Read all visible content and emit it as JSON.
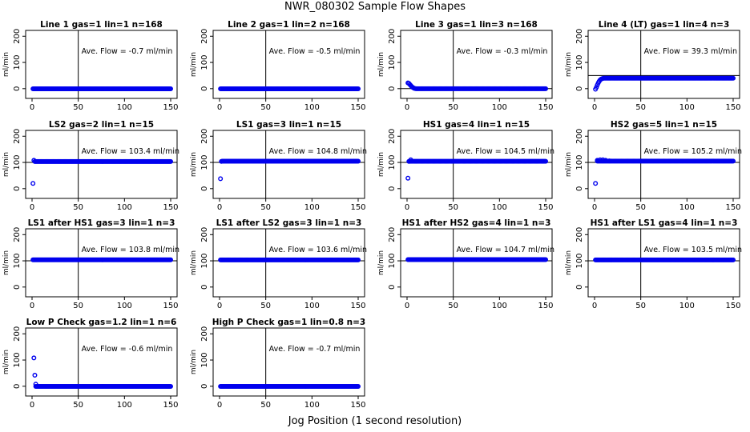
{
  "figure": {
    "title": "NWR_080302  Sample Flow Shapes",
    "xlabel": "Jog Position (1 second resolution)",
    "point_color": "#0000ee"
  },
  "chart_data": [
    {
      "type": "scatter",
      "title": "Line 1 gas=1 lin=1 n=168",
      "ylabel": "ml/min",
      "xlim": [
        0,
        150
      ],
      "ylim": [
        -25,
        210
      ],
      "xticks": [
        0,
        50,
        100,
        150
      ],
      "yticks": [
        0,
        100,
        200
      ],
      "vline": 50,
      "hlines": [],
      "annotation": "Ave. Flow =  -0.7  ml/min",
      "segments": [
        {
          "from": 1,
          "to": 150,
          "y": -0.7
        }
      ],
      "points": []
    },
    {
      "type": "scatter",
      "title": "Line 2 gas=1 lin=2 n=168",
      "ylabel": "ml/min",
      "xlim": [
        0,
        150
      ],
      "ylim": [
        -25,
        210
      ],
      "xticks": [
        0,
        50,
        100,
        150
      ],
      "yticks": [
        0,
        100,
        200
      ],
      "vline": 50,
      "hlines": [],
      "annotation": "Ave. Flow =  -0.5  ml/min",
      "segments": [
        {
          "from": 1,
          "to": 150,
          "y": -0.5
        }
      ],
      "points": []
    },
    {
      "type": "scatter",
      "title": "Line 3 gas=1 lin=3 n=168",
      "ylabel": "ml/min",
      "xlim": [
        0,
        150
      ],
      "ylim": [
        -25,
        210
      ],
      "xticks": [
        0,
        50,
        100,
        150
      ],
      "yticks": [
        0,
        100,
        200
      ],
      "vline": 50,
      "hlines": [
        0
      ],
      "annotation": "Ave. Flow =  -0.3  ml/min",
      "segments": [
        {
          "from": 10,
          "to": 150,
          "y": -0.3
        }
      ],
      "points": [
        [
          1,
          22
        ],
        [
          2,
          20
        ],
        [
          3,
          16
        ],
        [
          4,
          12
        ],
        [
          5,
          8
        ],
        [
          6,
          5
        ],
        [
          7,
          3
        ],
        [
          8,
          1
        ],
        [
          9,
          0
        ]
      ]
    },
    {
      "type": "scatter",
      "title": "Line 4 (LT) gas=1 lin=4 n=3",
      "ylabel": "ml/min",
      "xlim": [
        0,
        150
      ],
      "ylim": [
        -25,
        210
      ],
      "xticks": [
        0,
        50,
        100,
        150
      ],
      "yticks": [
        0,
        100,
        200
      ],
      "vline": 50,
      "hlines": [
        50
      ],
      "annotation": "Ave. Flow =  39.3  ml/min",
      "segments": [
        {
          "from": 10,
          "to": 150,
          "y": 40
        }
      ],
      "points": [
        [
          1,
          -2
        ],
        [
          2,
          5
        ],
        [
          3,
          14
        ],
        [
          4,
          22
        ],
        [
          5,
          28
        ],
        [
          6,
          33
        ],
        [
          7,
          36
        ],
        [
          8,
          38
        ],
        [
          9,
          39
        ]
      ]
    },
    {
      "type": "scatter",
      "title": "LS2 gas=2 lin=1 n=15",
      "ylabel": "ml/min",
      "xlim": [
        0,
        150
      ],
      "ylim": [
        -25,
        210
      ],
      "xticks": [
        0,
        50,
        100,
        150
      ],
      "yticks": [
        0,
        100,
        200
      ],
      "vline": 50,
      "hlines": [
        100
      ],
      "annotation": "Ave. Flow =  103.4  ml/min",
      "segments": [
        {
          "from": 3,
          "to": 150,
          "y": 103.4
        }
      ],
      "points": [
        [
          1,
          20
        ],
        [
          2,
          108
        ]
      ]
    },
    {
      "type": "scatter",
      "title": "LS1 gas=3 lin=1 n=15",
      "ylabel": "ml/min",
      "xlim": [
        0,
        150
      ],
      "ylim": [
        -25,
        210
      ],
      "xticks": [
        0,
        50,
        100,
        150
      ],
      "yticks": [
        0,
        100,
        200
      ],
      "vline": 50,
      "hlines": [
        100
      ],
      "annotation": "Ave. Flow =  104.8  ml/min",
      "segments": [
        {
          "from": 3,
          "to": 150,
          "y": 104.8
        }
      ],
      "points": [
        [
          1,
          38
        ],
        [
          2,
          104
        ]
      ]
    },
    {
      "type": "scatter",
      "title": "HS1 gas=4 lin=1 n=15",
      "ylabel": "ml/min",
      "xlim": [
        0,
        150
      ],
      "ylim": [
        -25,
        210
      ],
      "xticks": [
        0,
        50,
        100,
        150
      ],
      "yticks": [
        0,
        100,
        200
      ],
      "vline": 50,
      "hlines": [
        100
      ],
      "annotation": "Ave. Flow =  104.5  ml/min",
      "segments": [
        {
          "from": 3,
          "to": 150,
          "y": 104.5
        }
      ],
      "points": [
        [
          1,
          40
        ],
        [
          2,
          104
        ],
        [
          4,
          110
        ]
      ]
    },
    {
      "type": "scatter",
      "title": "HS2 gas=5 lin=1 n=15",
      "ylabel": "ml/min",
      "xlim": [
        0,
        150
      ],
      "ylim": [
        -25,
        210
      ],
      "xticks": [
        0,
        50,
        100,
        150
      ],
      "yticks": [
        0,
        100,
        200
      ],
      "vline": 50,
      "hlines": [
        100
      ],
      "annotation": "Ave. Flow =  105.2  ml/min",
      "segments": [
        {
          "from": 3,
          "to": 150,
          "y": 105.2
        }
      ],
      "points": [
        [
          1,
          20
        ],
        [
          3,
          108
        ],
        [
          6,
          110
        ],
        [
          9,
          110
        ],
        [
          12,
          108
        ],
        [
          16,
          106
        ]
      ]
    },
    {
      "type": "scatter",
      "title": "LS1 after HS1 gas=3 lin=1 n=3",
      "ylabel": "ml/min",
      "xlim": [
        0,
        150
      ],
      "ylim": [
        -25,
        210
      ],
      "xticks": [
        0,
        50,
        100,
        150
      ],
      "yticks": [
        0,
        100,
        200
      ],
      "vline": 50,
      "hlines": [
        100
      ],
      "annotation": "Ave. Flow =  103.8  ml/min",
      "segments": [
        {
          "from": 1,
          "to": 150,
          "y": 103.8
        }
      ],
      "points": []
    },
    {
      "type": "scatter",
      "title": "LS1 after LS2 gas=3 lin=1 n=3",
      "ylabel": "ml/min",
      "xlim": [
        0,
        150
      ],
      "ylim": [
        -25,
        210
      ],
      "xticks": [
        0,
        50,
        100,
        150
      ],
      "yticks": [
        0,
        100,
        200
      ],
      "vline": 50,
      "hlines": [
        100
      ],
      "annotation": "Ave. Flow =  103.6  ml/min",
      "segments": [
        {
          "from": 1,
          "to": 150,
          "y": 103.6
        }
      ],
      "points": []
    },
    {
      "type": "scatter",
      "title": "HS1 after HS2 gas=4 lin=1 n=3",
      "ylabel": "ml/min",
      "xlim": [
        0,
        150
      ],
      "ylim": [
        -25,
        210
      ],
      "xticks": [
        0,
        50,
        100,
        150
      ],
      "yticks": [
        0,
        100,
        200
      ],
      "vline": 50,
      "hlines": [
        100
      ],
      "annotation": "Ave. Flow =  104.7  ml/min",
      "segments": [
        {
          "from": 1,
          "to": 150,
          "y": 104.7
        }
      ],
      "points": []
    },
    {
      "type": "scatter",
      "title": "HS1 after LS1 gas=4 lin=1 n=3",
      "ylabel": "ml/min",
      "xlim": [
        0,
        150
      ],
      "ylim": [
        -25,
        210
      ],
      "xticks": [
        0,
        50,
        100,
        150
      ],
      "yticks": [
        0,
        100,
        200
      ],
      "vline": 50,
      "hlines": [
        100
      ],
      "annotation": "Ave. Flow =  103.5  ml/min",
      "segments": [
        {
          "from": 1,
          "to": 150,
          "y": 103.5
        }
      ],
      "points": []
    },
    {
      "type": "scatter",
      "title": "Low P Check gas=1.2 lin=1 n=6",
      "ylabel": "ml/min",
      "xlim": [
        0,
        150
      ],
      "ylim": [
        -25,
        210
      ],
      "xticks": [
        0,
        50,
        100,
        150
      ],
      "yticks": [
        0,
        100,
        200
      ],
      "vline": 50,
      "hlines": [],
      "annotation": "Ave. Flow =  -0.6  ml/min",
      "segments": [
        {
          "from": 4,
          "to": 150,
          "y": -0.6
        }
      ],
      "points": [
        [
          2,
          108
        ],
        [
          3,
          42
        ],
        [
          4,
          8
        ]
      ]
    },
    {
      "type": "scatter",
      "title": "High P Check gas=1 lin=0.8 n=3",
      "ylabel": "ml/min",
      "xlim": [
        0,
        150
      ],
      "ylim": [
        -25,
        210
      ],
      "xticks": [
        0,
        50,
        100,
        150
      ],
      "yticks": [
        0,
        100,
        200
      ],
      "vline": 50,
      "hlines": [],
      "annotation": "Ave. Flow =  -0.7  ml/min",
      "segments": [
        {
          "from": 1,
          "to": 150,
          "y": -0.7
        }
      ],
      "points": []
    }
  ]
}
